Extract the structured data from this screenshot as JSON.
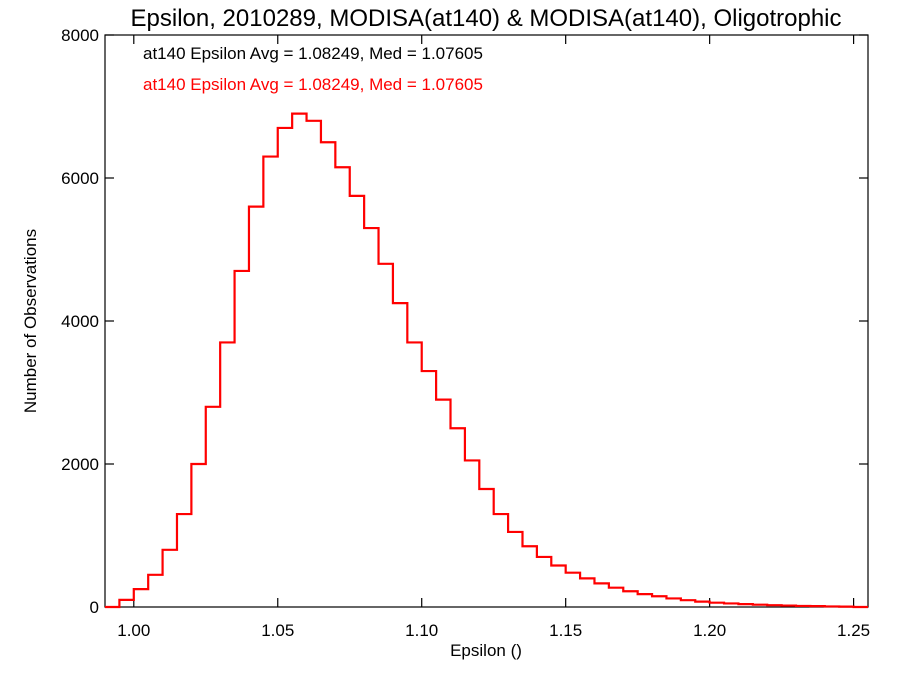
{
  "chart_data": {
    "type": "histogram",
    "title": "Epsilon, 2010289, MODISA(at140) & MODISA(at140), Oligotrophic",
    "xlabel": "Epsilon ()",
    "ylabel": "Number of Observations",
    "xlim": [
      0.99,
      1.255
    ],
    "ylim": [
      0,
      8000
    ],
    "x_ticks": [
      1.0,
      1.05,
      1.1,
      1.15,
      1.2,
      1.25
    ],
    "x_tick_labels": [
      "1.00",
      "1.05",
      "1.10",
      "1.15",
      "1.20",
      "1.25"
    ],
    "y_ticks": [
      0,
      2000,
      4000,
      6000,
      8000
    ],
    "y_tick_labels": [
      "0",
      "2000",
      "4000",
      "6000",
      "8000"
    ],
    "annotations": [
      {
        "text": "at140 Epsilon Avg = 1.08249, Med = 1.07605",
        "color": "#000000"
      },
      {
        "text": "at140 Epsilon Avg = 1.08249, Med = 1.07605",
        "color": "#ff0000"
      }
    ],
    "series": [
      {
        "color": "#ff0000",
        "x": [
          0.99,
          0.995,
          1.0,
          1.005,
          1.01,
          1.015,
          1.02,
          1.025,
          1.03,
          1.035,
          1.04,
          1.045,
          1.05,
          1.055,
          1.06,
          1.065,
          1.07,
          1.075,
          1.08,
          1.085,
          1.09,
          1.095,
          1.1,
          1.105,
          1.11,
          1.115,
          1.12,
          1.125,
          1.13,
          1.135,
          1.14,
          1.145,
          1.15,
          1.155,
          1.16,
          1.165,
          1.17,
          1.175,
          1.18,
          1.185,
          1.19,
          1.195,
          1.2,
          1.205,
          1.21,
          1.215,
          1.22,
          1.225,
          1.23,
          1.235,
          1.24,
          1.245,
          1.25,
          1.255
        ],
        "y": [
          0,
          100,
          250,
          450,
          800,
          1300,
          2000,
          2800,
          3700,
          4700,
          5600,
          6300,
          6700,
          6900,
          6800,
          6500,
          6150,
          5750,
          5300,
          4800,
          4250,
          3700,
          3300,
          2900,
          2500,
          2050,
          1650,
          1300,
          1050,
          850,
          700,
          580,
          480,
          400,
          330,
          270,
          220,
          180,
          150,
          120,
          95,
          75,
          60,
          50,
          40,
          32,
          25,
          20,
          15,
          12,
          8,
          5,
          0
        ]
      }
    ]
  }
}
